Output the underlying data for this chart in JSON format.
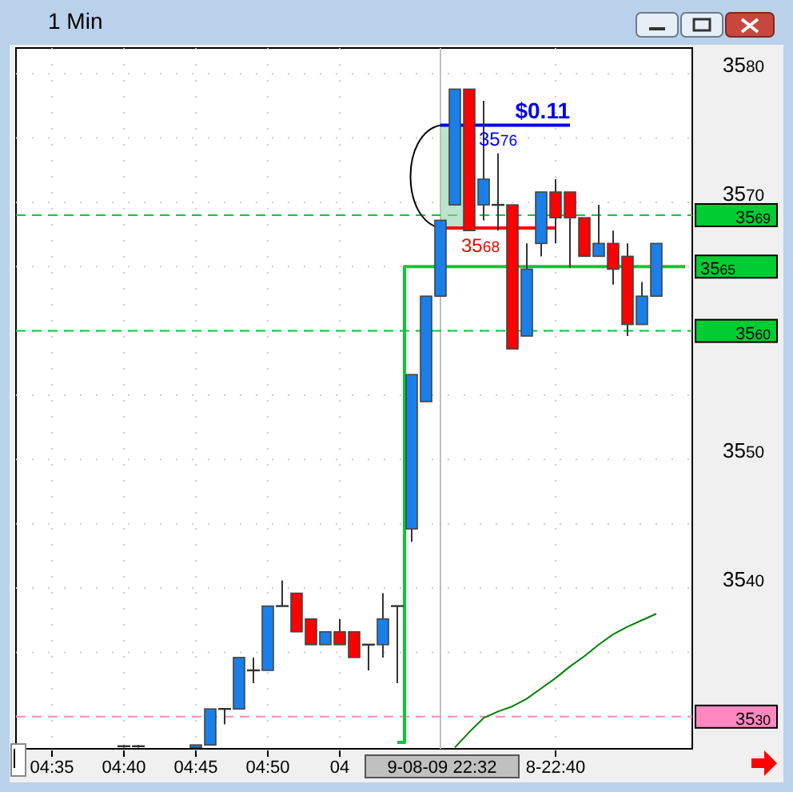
{
  "chart_data": {
    "type": "candlestick",
    "title": "1 Min",
    "categories": [
      null,
      null,
      "04:35",
      null,
      null,
      null,
      null,
      "04:40",
      null,
      null,
      null,
      null,
      "04:45",
      null,
      null,
      null,
      null,
      "04:50",
      null,
      null,
      null,
      null,
      "04",
      null,
      null,
      null,
      null,
      null,
      null,
      "9-08-09 22:32",
      null,
      null,
      null,
      null,
      null,
      null,
      null,
      "8-22:40",
      null,
      null,
      null,
      null,
      null,
      null,
      null,
      null,
      null
    ],
    "ohlc": [
      null,
      null,
      null,
      null,
      null,
      null,
      null,
      [
        3527.7,
        3527.8,
        3527.6,
        3527.7
      ],
      [
        3527.7,
        3527.8,
        3527.6,
        3527.6
      ],
      null,
      null,
      null,
      [
        3527.6,
        3527.8,
        3527.6,
        3527.8
      ],
      [
        3527.8,
        3530.6,
        3527.8,
        3530.6
      ],
      [
        3530.6,
        3530.6,
        3529.4,
        3530.6
      ],
      [
        3530.6,
        3534.6,
        3530.6,
        3534.6
      ],
      [
        3533.6,
        3534.6,
        3532.6,
        3533.6
      ],
      [
        3533.6,
        3538.6,
        3533.6,
        3538.6
      ],
      [
        3538.6,
        3540.6,
        3538.6,
        3538.6
      ],
      [
        3539.6,
        3539.6,
        3536.6,
        3536.6
      ],
      [
        3537.6,
        3537.6,
        3535.6,
        3535.6
      ],
      [
        3535.6,
        3536.6,
        3535.6,
        3536.6
      ],
      [
        3536.6,
        3537.6,
        3535.6,
        3535.6
      ],
      [
        3536.6,
        3536.6,
        3534.6,
        3534.6
      ],
      [
        3535.6,
        3535.6,
        3533.6,
        3535.6
      ],
      [
        3535.6,
        3539.6,
        3534.6,
        3537.6
      ],
      [
        3538.6,
        3538.6,
        3532.6,
        3538.6
      ],
      [
        3544.6,
        3556.6,
        3543.6,
        3556.6
      ],
      [
        3554.5,
        3562.7,
        3554.5,
        3562.7
      ],
      [
        3562.7,
        3568.6,
        3562.7,
        3568.6
      ],
      [
        3569.8,
        3578.8,
        3569.8,
        3578.8
      ],
      [
        3578.8,
        3578.8,
        3567.8,
        3567.8
      ],
      [
        3569.8,
        3577.9,
        3568.6,
        3571.8
      ],
      [
        3569.8,
        3573.8,
        3567.8,
        3569.8
      ],
      [
        3569.8,
        3569.8,
        3558.6,
        3558.6
      ],
      [
        3559.6,
        3566.8,
        3559.6,
        3564.8
      ],
      [
        3566.8,
        3570.8,
        3565.8,
        3570.8
      ],
      [
        3570.8,
        3571.8,
        3566.8,
        3568.8
      ],
      [
        3570.8,
        3570.8,
        3564.9,
        3568.8
      ],
      [
        3568.8,
        3568.8,
        3565.8,
        3565.8
      ],
      [
        3565.8,
        3569.8,
        3565.8,
        3566.8
      ],
      [
        3566.8,
        3567.8,
        3563.6,
        3564.8
      ],
      [
        3565.8,
        3566.8,
        3559.6,
        3560.5
      ],
      [
        3560.5,
        3563.8,
        3560.5,
        3562.7
      ],
      [
        3562.7,
        3566.8,
        3562.7,
        3566.8
      ],
      null,
      null
    ],
    "series": [
      {
        "type": "step",
        "color": "#00cc33",
        "values": [
          null,
          null,
          null,
          null,
          null,
          null,
          null,
          null,
          null,
          null,
          null,
          null,
          null,
          null,
          null,
          null,
          null,
          null,
          null,
          null,
          null,
          null,
          null,
          null,
          null,
          null,
          3528,
          3565,
          3565,
          3565,
          3565,
          3565,
          3565,
          3565,
          3565,
          3565,
          3565,
          3565,
          3565,
          3565,
          3565,
          3565,
          3565,
          3565,
          3565,
          3565,
          3565
        ],
        "value_labels": [
          null,
          null,
          null,
          null,
          null,
          null,
          null,
          null,
          null,
          null,
          null,
          null,
          null,
          null,
          null,
          null,
          null,
          null,
          null,
          null,
          null,
          null,
          null,
          null,
          null,
          null,
          null,
          null,
          null,
          null,
          null,
          null,
          null,
          null,
          null,
          null,
          null,
          null,
          null,
          null,
          null,
          null,
          null,
          null,
          null,
          null,
          "3565"
        ]
      },
      {
        "type": "line",
        "color": "#008000",
        "values": [
          null,
          null,
          null,
          null,
          null,
          null,
          null,
          null,
          null,
          null,
          null,
          null,
          null,
          null,
          null,
          null,
          null,
          null,
          null,
          null,
          null,
          null,
          null,
          null,
          null,
          null,
          null,
          null,
          null,
          null,
          3527.6,
          3528.8,
          3529.9,
          3530.4,
          3530.8,
          3531.4,
          3532.2,
          3533.0,
          3533.9,
          3534.7,
          3535.6,
          3536.4,
          3537.0,
          3537.5,
          3538.0,
          null,
          null
        ]
      }
    ],
    "ylim": [
      3527.5,
      3582
    ],
    "yticks": [
      3580,
      {
        "value": 3575,
        "label": null
      },
      3570,
      {
        "value": 3565,
        "label": null
      },
      {
        "value": 3560,
        "label": null
      },
      {
        "value": 3555,
        "label": null
      },
      3550,
      {
        "value": 3545,
        "label": null
      },
      3540,
      {
        "value": 3535,
        "label": null
      },
      {
        "value": 3530,
        "label": null
      }
    ],
    "grid": true,
    "ref_lines": [
      {
        "axis": "y",
        "value": 3569,
        "label": "3569",
        "color": "#00cc33",
        "line_style": "dashed"
      },
      {
        "axis": "y",
        "value": 3560,
        "label": "3560",
        "color": "#00cc33",
        "line_style": "dashed"
      },
      {
        "axis": "y",
        "value": 3530,
        "label": "3530",
        "color": "#ff88c0",
        "line_style": "dashed"
      },
      {
        "axis": "x",
        "value": "9-08-09 22:32",
        "color": "#c0c0c0",
        "line_style": "solid"
      },
      {
        "axis": "y",
        "value": 3576,
        "label": "3576",
        "color": "#0000ee",
        "line_style": "solid"
      },
      {
        "axis": "y",
        "value": 3568,
        "label": "3568",
        "color": "#ff0000",
        "line_style": "solid"
      }
    ],
    "annotations": [
      "$0.11"
    ]
  }
}
